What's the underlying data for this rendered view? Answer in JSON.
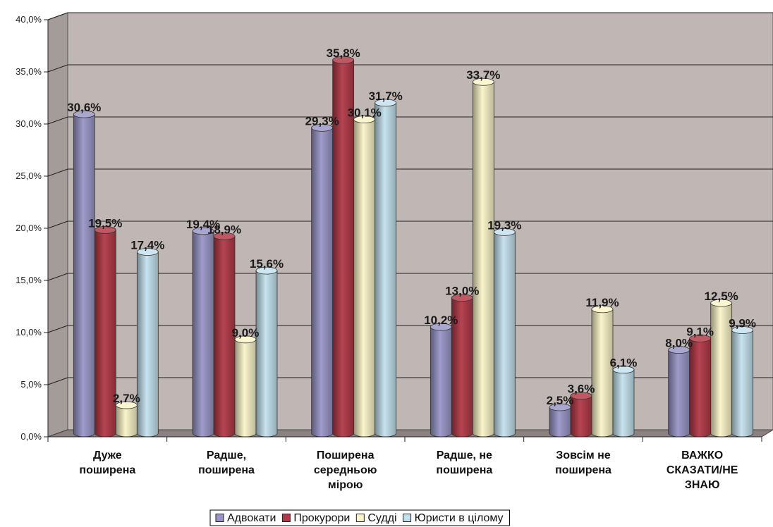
{
  "chart_data": {
    "type": "bar",
    "title": "",
    "xlabel": "",
    "ylabel": "",
    "ylim": [
      0,
      40
    ],
    "y_ticks": [
      "0,0%",
      "5,0%",
      "10,0%",
      "15,0%",
      "20,0%",
      "25,0%",
      "30,0%",
      "35,0%",
      "40,0%"
    ],
    "grid": true,
    "legend_position": "bottom",
    "categories": [
      [
        "Дуже",
        "поширена"
      ],
      [
        "Радше,",
        "поширена"
      ],
      [
        "Поширена",
        "середньою",
        "мірою"
      ],
      [
        "Радше, не",
        "поширена"
      ],
      [
        "Зовсім не",
        "поширена"
      ],
      [
        "ВАЖКО",
        "СКАЗАТИ/НЕ",
        "ЗНАЮ"
      ]
    ],
    "series": [
      {
        "name": "Адвокати",
        "values": [
          30.6,
          19.4,
          29.3,
          10.2,
          2.5,
          8.0
        ],
        "labels": [
          "30,6%",
          "19,4%",
          "29,3%",
          "10,2%",
          "2,5%",
          "8,0%"
        ],
        "color": "#9a96c8"
      },
      {
        "name": "Прокурори",
        "values": [
          19.5,
          18.9,
          35.8,
          13.0,
          3.6,
          9.1
        ],
        "labels": [
          "19,5%",
          "18,9%",
          "35,8%",
          "13,0%",
          "3,6%",
          "9,1%"
        ],
        "color": "#b23a48"
      },
      {
        "name": "Судді",
        "values": [
          2.7,
          9.0,
          30.1,
          33.7,
          11.9,
          12.5
        ],
        "labels": [
          "2,7%",
          "9,0%",
          "30,1%",
          "33,7%",
          "11,9%",
          "12,5%"
        ],
        "color": "#faf4c8"
      },
      {
        "name": "Юристи в цілому",
        "values": [
          17.4,
          15.6,
          31.7,
          19.3,
          6.1,
          9.9
        ],
        "labels": [
          "17,4%",
          "15,6%",
          "31,7%",
          "19,3%",
          "6,1%",
          "9,9%"
        ],
        "color": "#c4e2ee"
      }
    ],
    "colors": {
      "wall": "#c0b7b4",
      "floor": "#8a8280",
      "grid": "#222222"
    }
  }
}
